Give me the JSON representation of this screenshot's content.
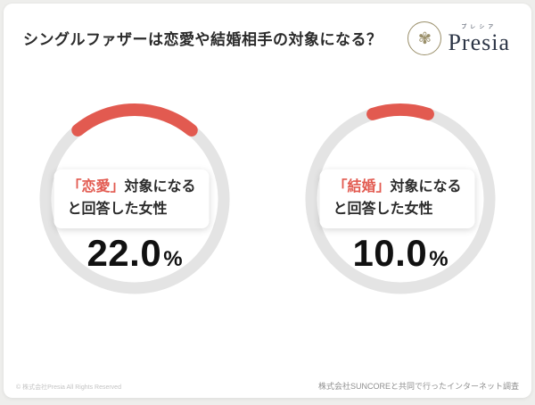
{
  "page": {
    "title": "シングルファザーは恋愛や結婚相手の対象になる？",
    "logo": {
      "name": "Presia",
      "subtext": "プレシア",
      "emblem": "flower-emblem"
    },
    "footer_left": "© 株式会社Presia All Rights Reserved",
    "footer_right": "株式会社SUNCOREと共同で行ったインターネット調査"
  },
  "colors": {
    "accent": "#e25a50",
    "ring": "#e4e4e4",
    "text_dark": "#2b2b2b",
    "card_background": "#ffffff"
  },
  "chart_data": {
    "type": "pie",
    "subtype": "donut-gauge",
    "legend_position": "none",
    "charts": [
      {
        "label_highlight": "「恋愛」",
        "label_rest": "対象になる",
        "label_line2": "と回答した女性",
        "value": 22.0,
        "value_display": "22.0",
        "unit": "%"
      },
      {
        "label_highlight": "「結婚」",
        "label_rest": "対象になる",
        "label_line2": "と回答した女性",
        "value": 10.0,
        "value_display": "10.0",
        "unit": "%"
      }
    ]
  }
}
